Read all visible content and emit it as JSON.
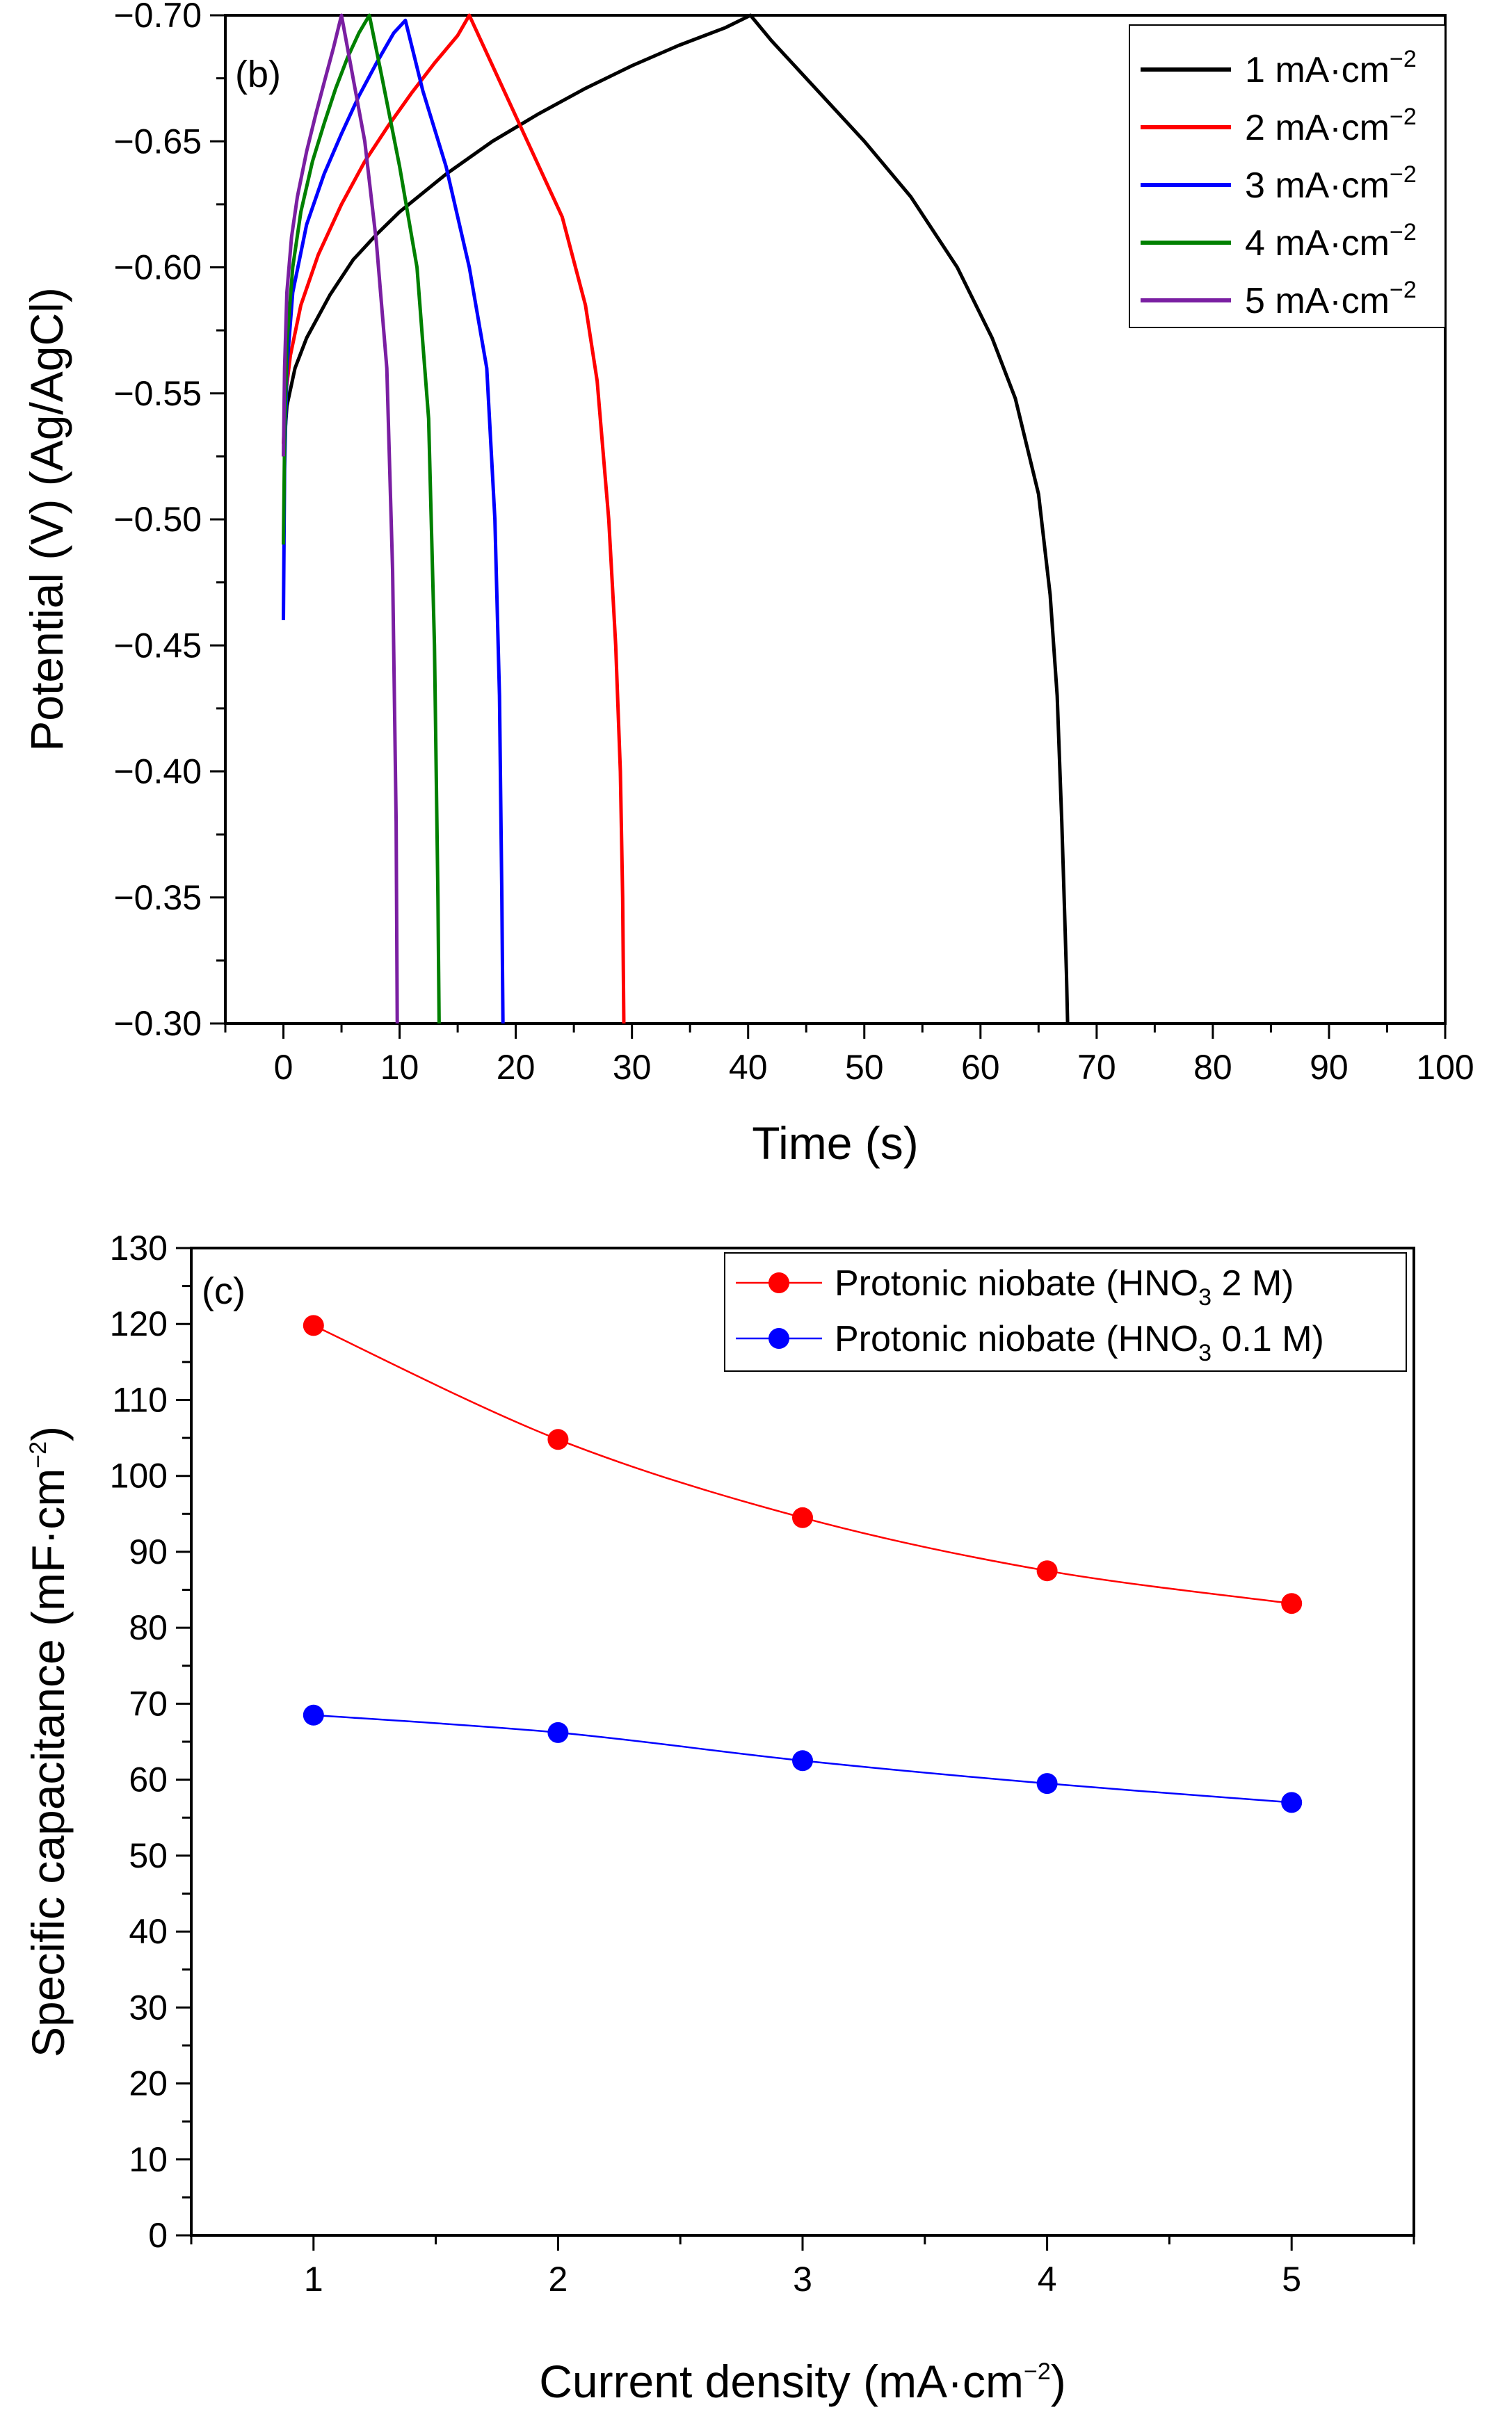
{
  "chart_data": [
    {
      "panel": "(b)",
      "type": "line",
      "xlabel": "Time (s)",
      "ylabel": "Potential (V) (Ag/AgCl)",
      "xlim": [
        -5,
        100
      ],
      "ylim": [
        -0.3,
        -0.7
      ],
      "y_axis_inverted": true,
      "grid": false,
      "legend_position": "top-right",
      "xticks": [
        "0",
        "10",
        "20",
        "30",
        "40",
        "50",
        "60",
        "70",
        "80",
        "90",
        "100"
      ],
      "yticks": [
        "−0.70",
        "−0.65",
        "−0.60",
        "−0.55",
        "−0.50",
        "−0.45",
        "−0.40",
        "−0.35",
        "−0.30"
      ],
      "series": [
        {
          "name": "1 mA·cm",
          "sup": "−2",
          "color": "#000000",
          "x": [
            0,
            0.3,
            1,
            2,
            4,
            6,
            8,
            10,
            14,
            18,
            22,
            26,
            30,
            34,
            38,
            40.2,
            42,
            46,
            50,
            54,
            58,
            61,
            63,
            65,
            66,
            66.6,
            67,
            67.2,
            67.4,
            67.5
          ],
          "y": [
            -0.525,
            -0.545,
            -0.56,
            -0.572,
            -0.589,
            -0.603,
            -0.613,
            -0.622,
            -0.637,
            -0.65,
            -0.661,
            -0.671,
            -0.68,
            -0.688,
            -0.695,
            -0.7,
            -0.69,
            -0.67,
            -0.65,
            -0.628,
            -0.6,
            -0.572,
            -0.548,
            -0.51,
            -0.47,
            -0.43,
            -0.38,
            -0.35,
            -0.32,
            -0.3
          ]
        },
        {
          "name": "2 mA·cm",
          "sup": "−2",
          "color": "#ff0000",
          "x": [
            0,
            0.2,
            0.6,
            1.5,
            3,
            5,
            7,
            9,
            11,
            13,
            15,
            16,
            18,
            20,
            22,
            24,
            26,
            27,
            28,
            28.6,
            29,
            29.2,
            29.3
          ],
          "y": [
            -0.53,
            -0.55,
            -0.565,
            -0.585,
            -0.605,
            -0.625,
            -0.642,
            -0.656,
            -0.669,
            -0.681,
            -0.692,
            -0.7,
            -0.68,
            -0.66,
            -0.64,
            -0.62,
            -0.585,
            -0.555,
            -0.5,
            -0.45,
            -0.4,
            -0.35,
            -0.3
          ]
        },
        {
          "name": "3 mA·cm",
          "sup": "−2",
          "color": "#0000ff",
          "x": [
            0,
            0.1,
            0.3,
            0.8,
            2,
            3.5,
            5,
            6.5,
            8,
            9.5,
            10.5,
            12,
            14,
            16,
            17.5,
            18.2,
            18.6,
            18.8,
            18.9
          ],
          "y": [
            -0.46,
            -0.52,
            -0.56,
            -0.59,
            -0.617,
            -0.637,
            -0.653,
            -0.668,
            -0.681,
            -0.693,
            -0.698,
            -0.67,
            -0.64,
            -0.6,
            -0.56,
            -0.5,
            -0.43,
            -0.35,
            -0.3
          ]
        },
        {
          "name": "4 mA·cm",
          "sup": "−2",
          "color": "#008000",
          "x": [
            0,
            0.1,
            0.3,
            0.8,
            1.5,
            2.5,
            3.5,
            4.5,
            5.5,
            6.5,
            7.4,
            8.5,
            10,
            11.5,
            12.5,
            13,
            13.3,
            13.4
          ],
          "y": [
            -0.49,
            -0.53,
            -0.57,
            -0.6,
            -0.622,
            -0.642,
            -0.657,
            -0.671,
            -0.683,
            -0.693,
            -0.7,
            -0.675,
            -0.64,
            -0.6,
            -0.54,
            -0.45,
            -0.35,
            -0.3
          ]
        },
        {
          "name": "5 mA·cm",
          "sup": "−2",
          "color": "#7a1fa2",
          "x": [
            0,
            0.1,
            0.3,
            0.7,
            1.2,
            2,
            2.8,
            3.6,
            4.3,
            5,
            5.8,
            7,
            8,
            8.9,
            9.4,
            9.7,
            9.8
          ],
          "y": [
            -0.525,
            -0.56,
            -0.59,
            -0.612,
            -0.628,
            -0.646,
            -0.661,
            -0.675,
            -0.687,
            -0.7,
            -0.68,
            -0.65,
            -0.61,
            -0.56,
            -0.48,
            -0.38,
            -0.3
          ]
        }
      ]
    },
    {
      "panel": "(c)",
      "type": "line",
      "xlabel": "Current density (mA·cm",
      "xlabel_sup": "−2",
      "xlabel_end": ")",
      "ylabel": "Specific capacitance (mF·cm",
      "ylabel_sup": "−2",
      "ylabel_end": ")",
      "xlim": [
        0.5,
        5.5
      ],
      "ylim": [
        0,
        130
      ],
      "grid": false,
      "legend_position": "top-right",
      "xticks": [
        "1",
        "2",
        "3",
        "4",
        "5"
      ],
      "yticks": [
        "0",
        "10",
        "20",
        "30",
        "40",
        "50",
        "60",
        "70",
        "80",
        "90",
        "100",
        "110",
        "120",
        "130"
      ],
      "series": [
        {
          "name_pre": "Protonic niobate (HNO",
          "name_sub": "3",
          "name_post": " 2 M)",
          "color": "#ff0000",
          "x": [
            1,
            2,
            3,
            4,
            5
          ],
          "y": [
            119.8,
            104.8,
            94.5,
            87.5,
            83.2
          ]
        },
        {
          "name_pre": "Protonic niobate (HNO",
          "name_sub": "3",
          "name_post": " 0.1 M)",
          "color": "#0000ff",
          "x": [
            1,
            2,
            3,
            4,
            5
          ],
          "y": [
            68.5,
            66.2,
            62.5,
            59.5,
            57.0
          ]
        }
      ]
    }
  ]
}
